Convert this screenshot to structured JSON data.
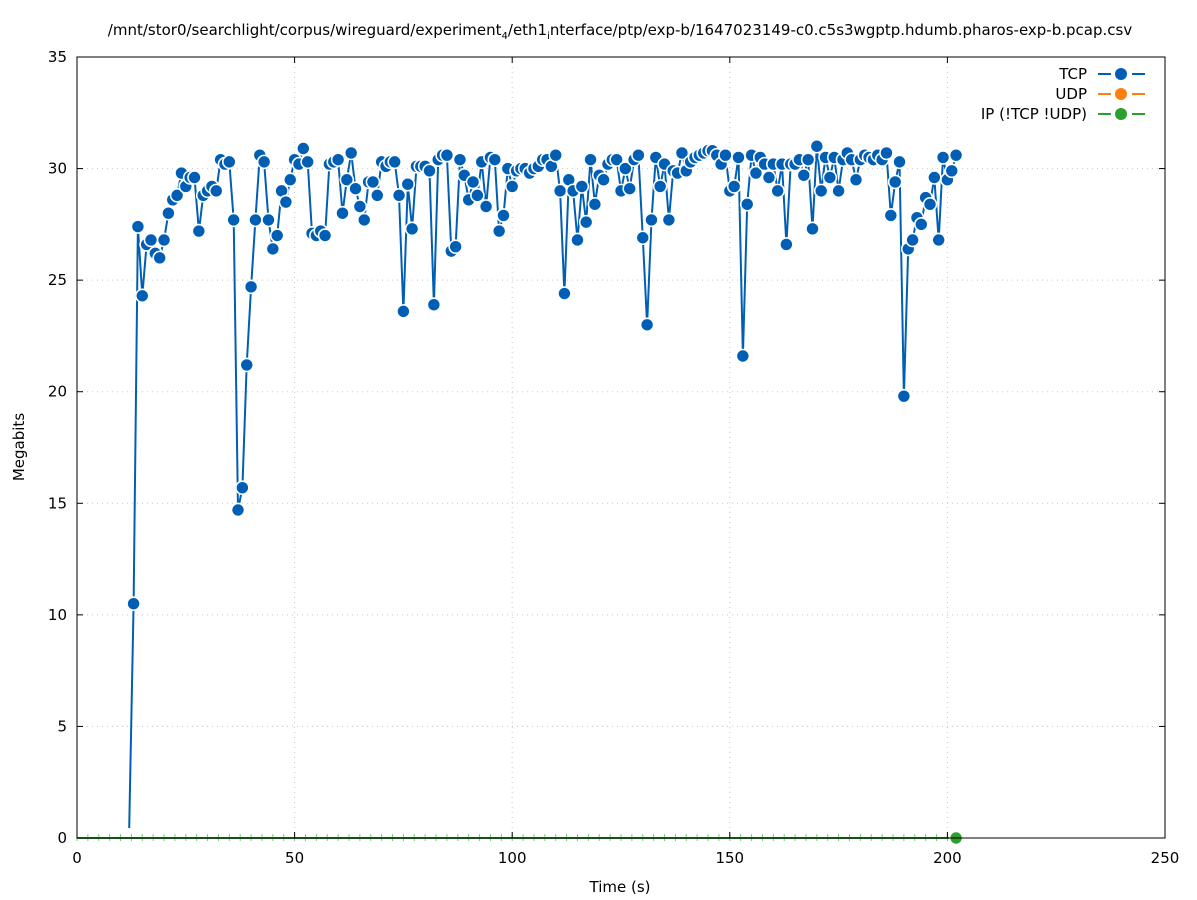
{
  "chart_data": {
    "type": "line",
    "title_parts": [
      "/mnt/stor0/searchlight/corpus/wireguard/experiment",
      "4",
      "/eth1",
      "i",
      "nterface/ptp/exp-b/1647023149-c0.c5s3wgptp.hdumb.pharos-exp-b.pcap.csv"
    ],
    "xlabel": "Time (s)",
    "ylabel": "Megabits",
    "xlim": [
      0,
      250
    ],
    "ylim": [
      0,
      35
    ],
    "xticks": [
      0,
      50,
      100,
      150,
      200,
      250
    ],
    "yticks": [
      0,
      5,
      10,
      15,
      20,
      25,
      30,
      35
    ],
    "grid": true,
    "legend_position": "top-right",
    "series": [
      {
        "name": "TCP",
        "color": "#005fb4",
        "x": [
          12,
          13,
          14,
          15,
          16,
          17,
          18,
          19,
          20,
          21,
          22,
          23,
          24,
          25,
          26,
          27,
          28,
          29,
          30,
          31,
          32,
          33,
          34,
          35,
          36,
          37,
          38,
          39,
          40,
          41,
          42,
          43,
          44,
          45,
          46,
          47,
          48,
          49,
          50,
          51,
          52,
          53,
          54,
          55,
          56,
          57,
          58,
          59,
          60,
          61,
          62,
          63,
          64,
          65,
          66,
          67,
          68,
          69,
          70,
          71,
          72,
          73,
          74,
          75,
          76,
          77,
          78,
          79,
          80,
          81,
          82,
          83,
          84,
          85,
          86,
          87,
          88,
          89,
          90,
          91,
          92,
          93,
          94,
          95,
          96,
          97,
          98,
          99,
          100,
          101,
          102,
          103,
          104,
          105,
          106,
          107,
          108,
          109,
          110,
          111,
          112,
          113,
          114,
          115,
          116,
          117,
          118,
          119,
          120,
          121,
          122,
          123,
          124,
          125,
          126,
          127,
          128,
          129,
          130,
          131,
          132,
          133,
          134,
          135,
          136,
          137,
          138,
          139,
          140,
          141,
          142,
          143,
          144,
          145,
          146,
          147,
          148,
          149,
          150,
          151,
          152,
          153,
          154,
          155,
          156,
          157,
          158,
          159,
          160,
          161,
          162,
          163,
          164,
          165,
          166,
          167,
          168,
          169,
          170,
          171,
          172,
          173,
          174,
          175,
          176,
          177,
          178,
          179,
          180,
          181,
          182,
          183,
          184,
          185,
          186,
          187,
          188,
          189,
          190,
          191,
          192,
          193,
          194,
          195,
          196,
          197,
          198,
          199,
          200,
          201,
          202
        ],
        "y": [
          0.45,
          10.5,
          27.4,
          24.3,
          26.6,
          26.8,
          26.2,
          26.0,
          26.8,
          28.0,
          28.6,
          28.8,
          29.8,
          29.2,
          29.6,
          29.6,
          27.2,
          28.8,
          29.0,
          29.2,
          29.0,
          30.4,
          30.2,
          30.3,
          27.7,
          14.7,
          15.7,
          21.2,
          24.7,
          27.7,
          30.6,
          30.3,
          27.7,
          26.4,
          27.0,
          29.0,
          28.5,
          29.5,
          30.4,
          30.2,
          30.9,
          30.3,
          27.1,
          27.0,
          27.2,
          27.0,
          30.2,
          30.3,
          30.4,
          28.0,
          29.5,
          30.7,
          29.1,
          28.3,
          27.7,
          29.4,
          29.4,
          28.8,
          30.3,
          30.1,
          30.3,
          30.3,
          28.8,
          23.6,
          29.3,
          27.3,
          30.1,
          30.1,
          30.1,
          29.9,
          23.9,
          30.4,
          30.6,
          30.6,
          26.3,
          26.5,
          30.4,
          29.7,
          28.6,
          29.4,
          28.8,
          30.3,
          28.3,
          30.5,
          30.4,
          27.2,
          27.9,
          30.0,
          29.2,
          29.9,
          30.0,
          30.0,
          29.8,
          30.0,
          30.1,
          30.4,
          30.4,
          30.1,
          30.6,
          29.0,
          24.4,
          29.5,
          29.0,
          26.8,
          29.2,
          27.6,
          30.4,
          28.4,
          29.7,
          29.5,
          30.2,
          30.4,
          30.4,
          29.0,
          30.0,
          29.1,
          30.4,
          30.6,
          26.9,
          23.0,
          27.7,
          30.5,
          29.2,
          30.2,
          27.7,
          29.9,
          29.8,
          30.7,
          29.9,
          30.3,
          30.5,
          30.6,
          30.7,
          30.8,
          30.8,
          30.6,
          30.2,
          30.6,
          29.0,
          29.2,
          30.5,
          21.6,
          28.4,
          30.6,
          29.8,
          30.5,
          30.2,
          29.6,
          30.2,
          29.0,
          30.2,
          26.6,
          30.2,
          30.2,
          30.4,
          29.7,
          30.4,
          27.3,
          31.0,
          29.0,
          30.5,
          29.6,
          30.5,
          29.0,
          30.4,
          30.7,
          30.4,
          29.5,
          30.4,
          30.6,
          30.5,
          30.4,
          30.6,
          30.4,
          30.7,
          27.9,
          29.4,
          30.3,
          19.8,
          26.4,
          26.8,
          27.8,
          27.5,
          28.7,
          28.4,
          29.6,
          26.8,
          30.5,
          29.5,
          29.9,
          30.6
        ]
      },
      {
        "name": "UDP",
        "color": "#ff7f0e",
        "x": [],
        "y": []
      },
      {
        "name": "IP (!TCP  !UDP)",
        "color": "#2ca02c",
        "x": [
          0,
          202
        ],
        "y": [
          0,
          0
        ]
      }
    ]
  }
}
